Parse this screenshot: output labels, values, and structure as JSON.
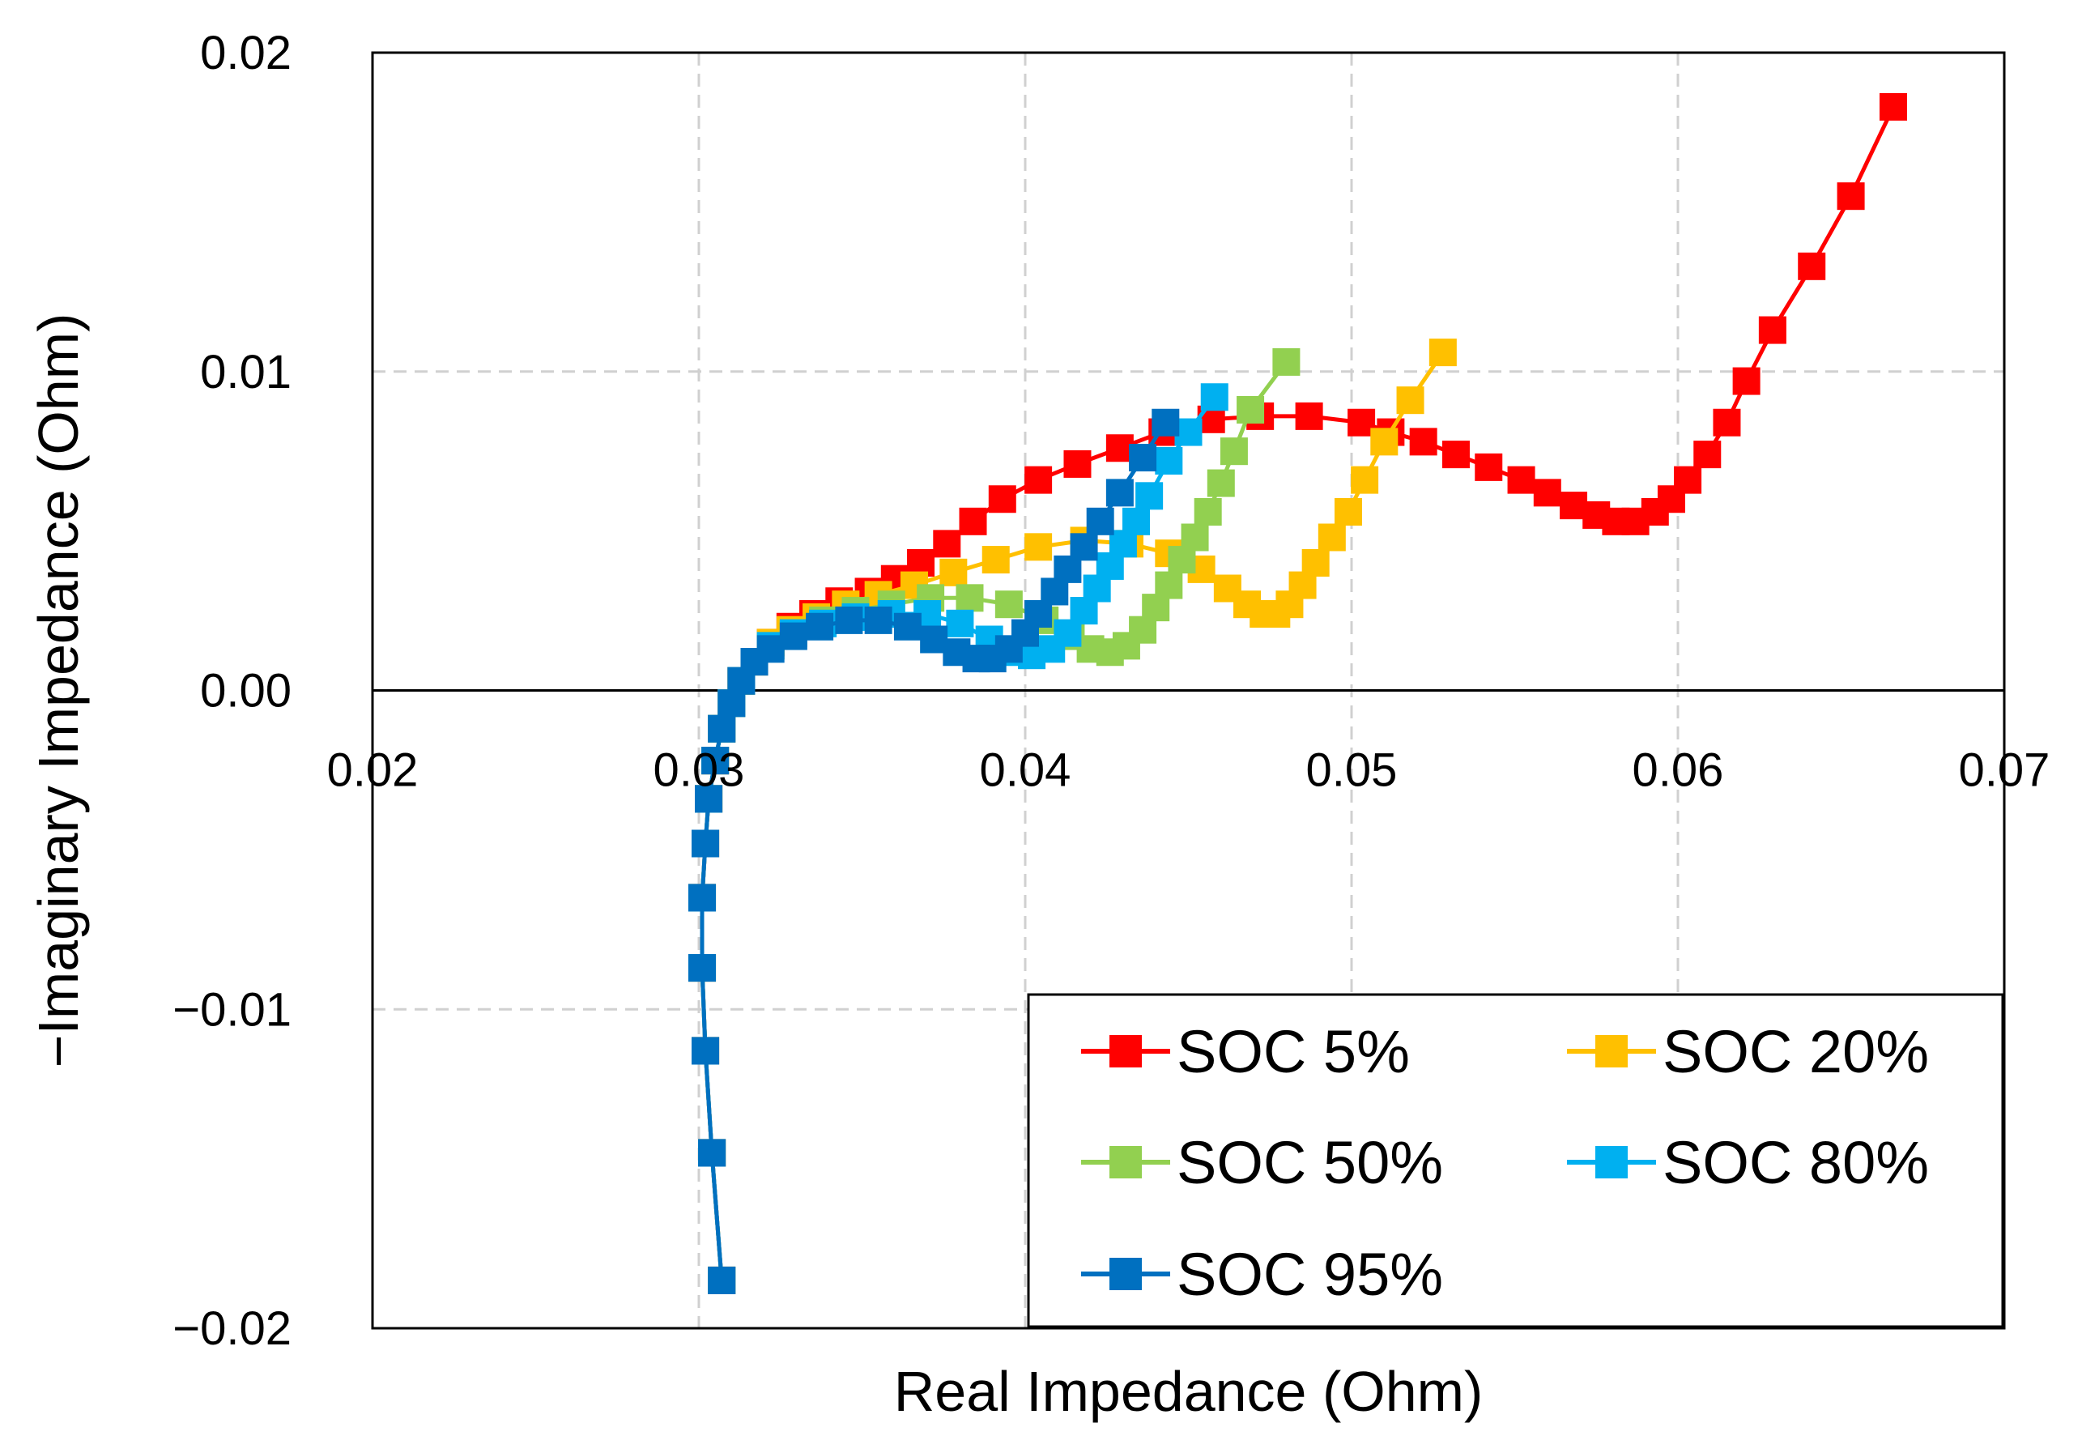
{
  "chart_data": {
    "type": "scatter",
    "xlabel": "Real Impedance (Ohm)",
    "ylabel": "−Imaginary Impedance (Ohm)",
    "xlim": [
      0.02,
      0.07
    ],
    "ylim": [
      -0.02,
      0.02
    ],
    "x_ticks": [
      "0.02",
      "0.03",
      "0.04",
      "0.05",
      "0.06",
      "0.07"
    ],
    "y_ticks": [
      "0.02",
      "0.01",
      "0.00",
      "−0.01",
      "−0.02"
    ],
    "grid": "dashed",
    "legend_position": "bottom-right",
    "series": [
      {
        "name": "SOC 5%",
        "color": "#ff0000",
        "points": [
          [
            0.0307,
            -0.0185
          ],
          [
            0.0304,
            -0.0145
          ],
          [
            0.0302,
            -0.0113
          ],
          [
            0.0301,
            -0.0087
          ],
          [
            0.0301,
            -0.0065
          ],
          [
            0.0302,
            -0.0048
          ],
          [
            0.0303,
            -0.0034
          ],
          [
            0.0305,
            -0.0022
          ],
          [
            0.0307,
            -0.0012
          ],
          [
            0.031,
            -0.0004
          ],
          [
            0.0313,
            0.0003
          ],
          [
            0.0317,
            0.0009
          ],
          [
            0.0322,
            0.0015
          ],
          [
            0.0328,
            0.002
          ],
          [
            0.0335,
            0.0024
          ],
          [
            0.0343,
            0.0028
          ],
          [
            0.0352,
            0.0031
          ],
          [
            0.036,
            0.0035
          ],
          [
            0.0368,
            0.004
          ],
          [
            0.0376,
            0.0046
          ],
          [
            0.0384,
            0.0053
          ],
          [
            0.0393,
            0.006
          ],
          [
            0.0404,
            0.0066
          ],
          [
            0.0416,
            0.0071
          ],
          [
            0.0429,
            0.0076
          ],
          [
            0.0442,
            0.0081
          ],
          [
            0.0457,
            0.0085
          ],
          [
            0.0472,
            0.0086
          ],
          [
            0.0487,
            0.0086
          ],
          [
            0.0503,
            0.0084
          ],
          [
            0.0512,
            0.0081
          ],
          [
            0.0522,
            0.0078
          ],
          [
            0.0532,
            0.0074
          ],
          [
            0.0542,
            0.007
          ],
          [
            0.0552,
            0.0066
          ],
          [
            0.056,
            0.0062
          ],
          [
            0.0568,
            0.0058
          ],
          [
            0.0575,
            0.0055
          ],
          [
            0.0581,
            0.0053
          ],
          [
            0.0587,
            0.0053
          ],
          [
            0.0593,
            0.0056
          ],
          [
            0.0598,
            0.006
          ],
          [
            0.0603,
            0.0066
          ],
          [
            0.0609,
            0.0074
          ],
          [
            0.0615,
            0.0084
          ],
          [
            0.0621,
            0.0097
          ],
          [
            0.0629,
            0.0113
          ],
          [
            0.0641,
            0.0133
          ],
          [
            0.0653,
            0.0155
          ],
          [
            0.0666,
            0.0183
          ]
        ]
      },
      {
        "name": "SOC 20%",
        "color": "#ffc000",
        "points": [
          [
            0.0307,
            -0.0185
          ],
          [
            0.0304,
            -0.0145
          ],
          [
            0.0302,
            -0.0113
          ],
          [
            0.0301,
            -0.0087
          ],
          [
            0.0301,
            -0.0065
          ],
          [
            0.0302,
            -0.0048
          ],
          [
            0.0303,
            -0.0034
          ],
          [
            0.0305,
            -0.0022
          ],
          [
            0.0307,
            -0.0012
          ],
          [
            0.031,
            -0.0004
          ],
          [
            0.0313,
            0.0003
          ],
          [
            0.0317,
            0.0009
          ],
          [
            0.0322,
            0.0015
          ],
          [
            0.0328,
            0.0019
          ],
          [
            0.0336,
            0.0023
          ],
          [
            0.0345,
            0.0027
          ],
          [
            0.0355,
            0.003
          ],
          [
            0.0366,
            0.0033
          ],
          [
            0.0378,
            0.0037
          ],
          [
            0.0391,
            0.0041
          ],
          [
            0.0404,
            0.0045
          ],
          [
            0.0418,
            0.0047
          ],
          [
            0.0432,
            0.0046
          ],
          [
            0.0444,
            0.0043
          ],
          [
            0.0454,
            0.0038
          ],
          [
            0.0462,
            0.0032
          ],
          [
            0.0468,
            0.0027
          ],
          [
            0.0473,
            0.0024
          ],
          [
            0.0477,
            0.0024
          ],
          [
            0.0481,
            0.0027
          ],
          [
            0.0485,
            0.0033
          ],
          [
            0.0489,
            0.004
          ],
          [
            0.0494,
            0.0048
          ],
          [
            0.0499,
            0.0056
          ],
          [
            0.0504,
            0.0066
          ],
          [
            0.051,
            0.0078
          ],
          [
            0.0518,
            0.0091
          ],
          [
            0.0528,
            0.0106
          ]
        ]
      },
      {
        "name": "SOC 50%",
        "color": "#92d050",
        "points": [
          [
            0.0307,
            -0.0185
          ],
          [
            0.0304,
            -0.0145
          ],
          [
            0.0302,
            -0.0113
          ],
          [
            0.0301,
            -0.0087
          ],
          [
            0.0301,
            -0.0065
          ],
          [
            0.0302,
            -0.0048
          ],
          [
            0.0303,
            -0.0034
          ],
          [
            0.0305,
            -0.0022
          ],
          [
            0.0307,
            -0.0012
          ],
          [
            0.031,
            -0.0004
          ],
          [
            0.0313,
            0.0003
          ],
          [
            0.0317,
            0.0009
          ],
          [
            0.0322,
            0.0014
          ],
          [
            0.0329,
            0.0018
          ],
          [
            0.0338,
            0.0022
          ],
          [
            0.0348,
            0.0025
          ],
          [
            0.0359,
            0.0027
          ],
          [
            0.0371,
            0.0029
          ],
          [
            0.0383,
            0.0029
          ],
          [
            0.0395,
            0.0027
          ],
          [
            0.0406,
            0.0022
          ],
          [
            0.0414,
            0.0017
          ],
          [
            0.042,
            0.0013
          ],
          [
            0.0426,
            0.0012
          ],
          [
            0.0431,
            0.0014
          ],
          [
            0.0436,
            0.0019
          ],
          [
            0.044,
            0.0026
          ],
          [
            0.0444,
            0.0033
          ],
          [
            0.0448,
            0.0041
          ],
          [
            0.0452,
            0.0048
          ],
          [
            0.0456,
            0.0056
          ],
          [
            0.046,
            0.0065
          ],
          [
            0.0464,
            0.0075
          ],
          [
            0.0469,
            0.0088
          ],
          [
            0.048,
            0.0103
          ]
        ]
      },
      {
        "name": "SOC 80%",
        "color": "#00b0f0",
        "points": [
          [
            0.0307,
            -0.0185
          ],
          [
            0.0304,
            -0.0145
          ],
          [
            0.0302,
            -0.0113
          ],
          [
            0.0301,
            -0.0087
          ],
          [
            0.0301,
            -0.0065
          ],
          [
            0.0302,
            -0.0048
          ],
          [
            0.0303,
            -0.0034
          ],
          [
            0.0305,
            -0.0022
          ],
          [
            0.0307,
            -0.0012
          ],
          [
            0.031,
            -0.0004
          ],
          [
            0.0313,
            0.0003
          ],
          [
            0.0317,
            0.0009
          ],
          [
            0.0322,
            0.0014
          ],
          [
            0.0329,
            0.0018
          ],
          [
            0.0338,
            0.0021
          ],
          [
            0.0348,
            0.0023
          ],
          [
            0.0359,
            0.0024
          ],
          [
            0.037,
            0.0024
          ],
          [
            0.038,
            0.0021
          ],
          [
            0.0389,
            0.0016
          ],
          [
            0.0396,
            0.0012
          ],
          [
            0.0402,
            0.0011
          ],
          [
            0.0408,
            0.0013
          ],
          [
            0.0413,
            0.0018
          ],
          [
            0.0418,
            0.0025
          ],
          [
            0.0422,
            0.0032
          ],
          [
            0.0426,
            0.0039
          ],
          [
            0.043,
            0.0046
          ],
          [
            0.0434,
            0.0053
          ],
          [
            0.0438,
            0.0061
          ],
          [
            0.0444,
            0.0072
          ],
          [
            0.045,
            0.0081
          ],
          [
            0.0458,
            0.0092
          ]
        ]
      },
      {
        "name": "SOC 95%",
        "color": "#0070c0",
        "points": [
          [
            0.0307,
            -0.0185
          ],
          [
            0.0304,
            -0.0145
          ],
          [
            0.0302,
            -0.0113
          ],
          [
            0.0301,
            -0.0087
          ],
          [
            0.0301,
            -0.0065
          ],
          [
            0.0302,
            -0.0048
          ],
          [
            0.0303,
            -0.0034
          ],
          [
            0.0305,
            -0.0022
          ],
          [
            0.0307,
            -0.0012
          ],
          [
            0.031,
            -0.0004
          ],
          [
            0.0313,
            0.0003
          ],
          [
            0.0317,
            0.0009
          ],
          [
            0.0322,
            0.0013
          ],
          [
            0.0329,
            0.0017
          ],
          [
            0.0337,
            0.002
          ],
          [
            0.0346,
            0.0022
          ],
          [
            0.0355,
            0.0022
          ],
          [
            0.0364,
            0.002
          ],
          [
            0.0372,
            0.0016
          ],
          [
            0.0379,
            0.0012
          ],
          [
            0.0385,
            0.001
          ],
          [
            0.039,
            0.001
          ],
          [
            0.0395,
            0.0013
          ],
          [
            0.04,
            0.0018
          ],
          [
            0.0404,
            0.0024
          ],
          [
            0.0409,
            0.0031
          ],
          [
            0.0413,
            0.0038
          ],
          [
            0.0418,
            0.0045
          ],
          [
            0.0423,
            0.0053
          ],
          [
            0.0429,
            0.0062
          ],
          [
            0.0436,
            0.0073
          ],
          [
            0.0443,
            0.0084
          ]
        ]
      }
    ]
  }
}
